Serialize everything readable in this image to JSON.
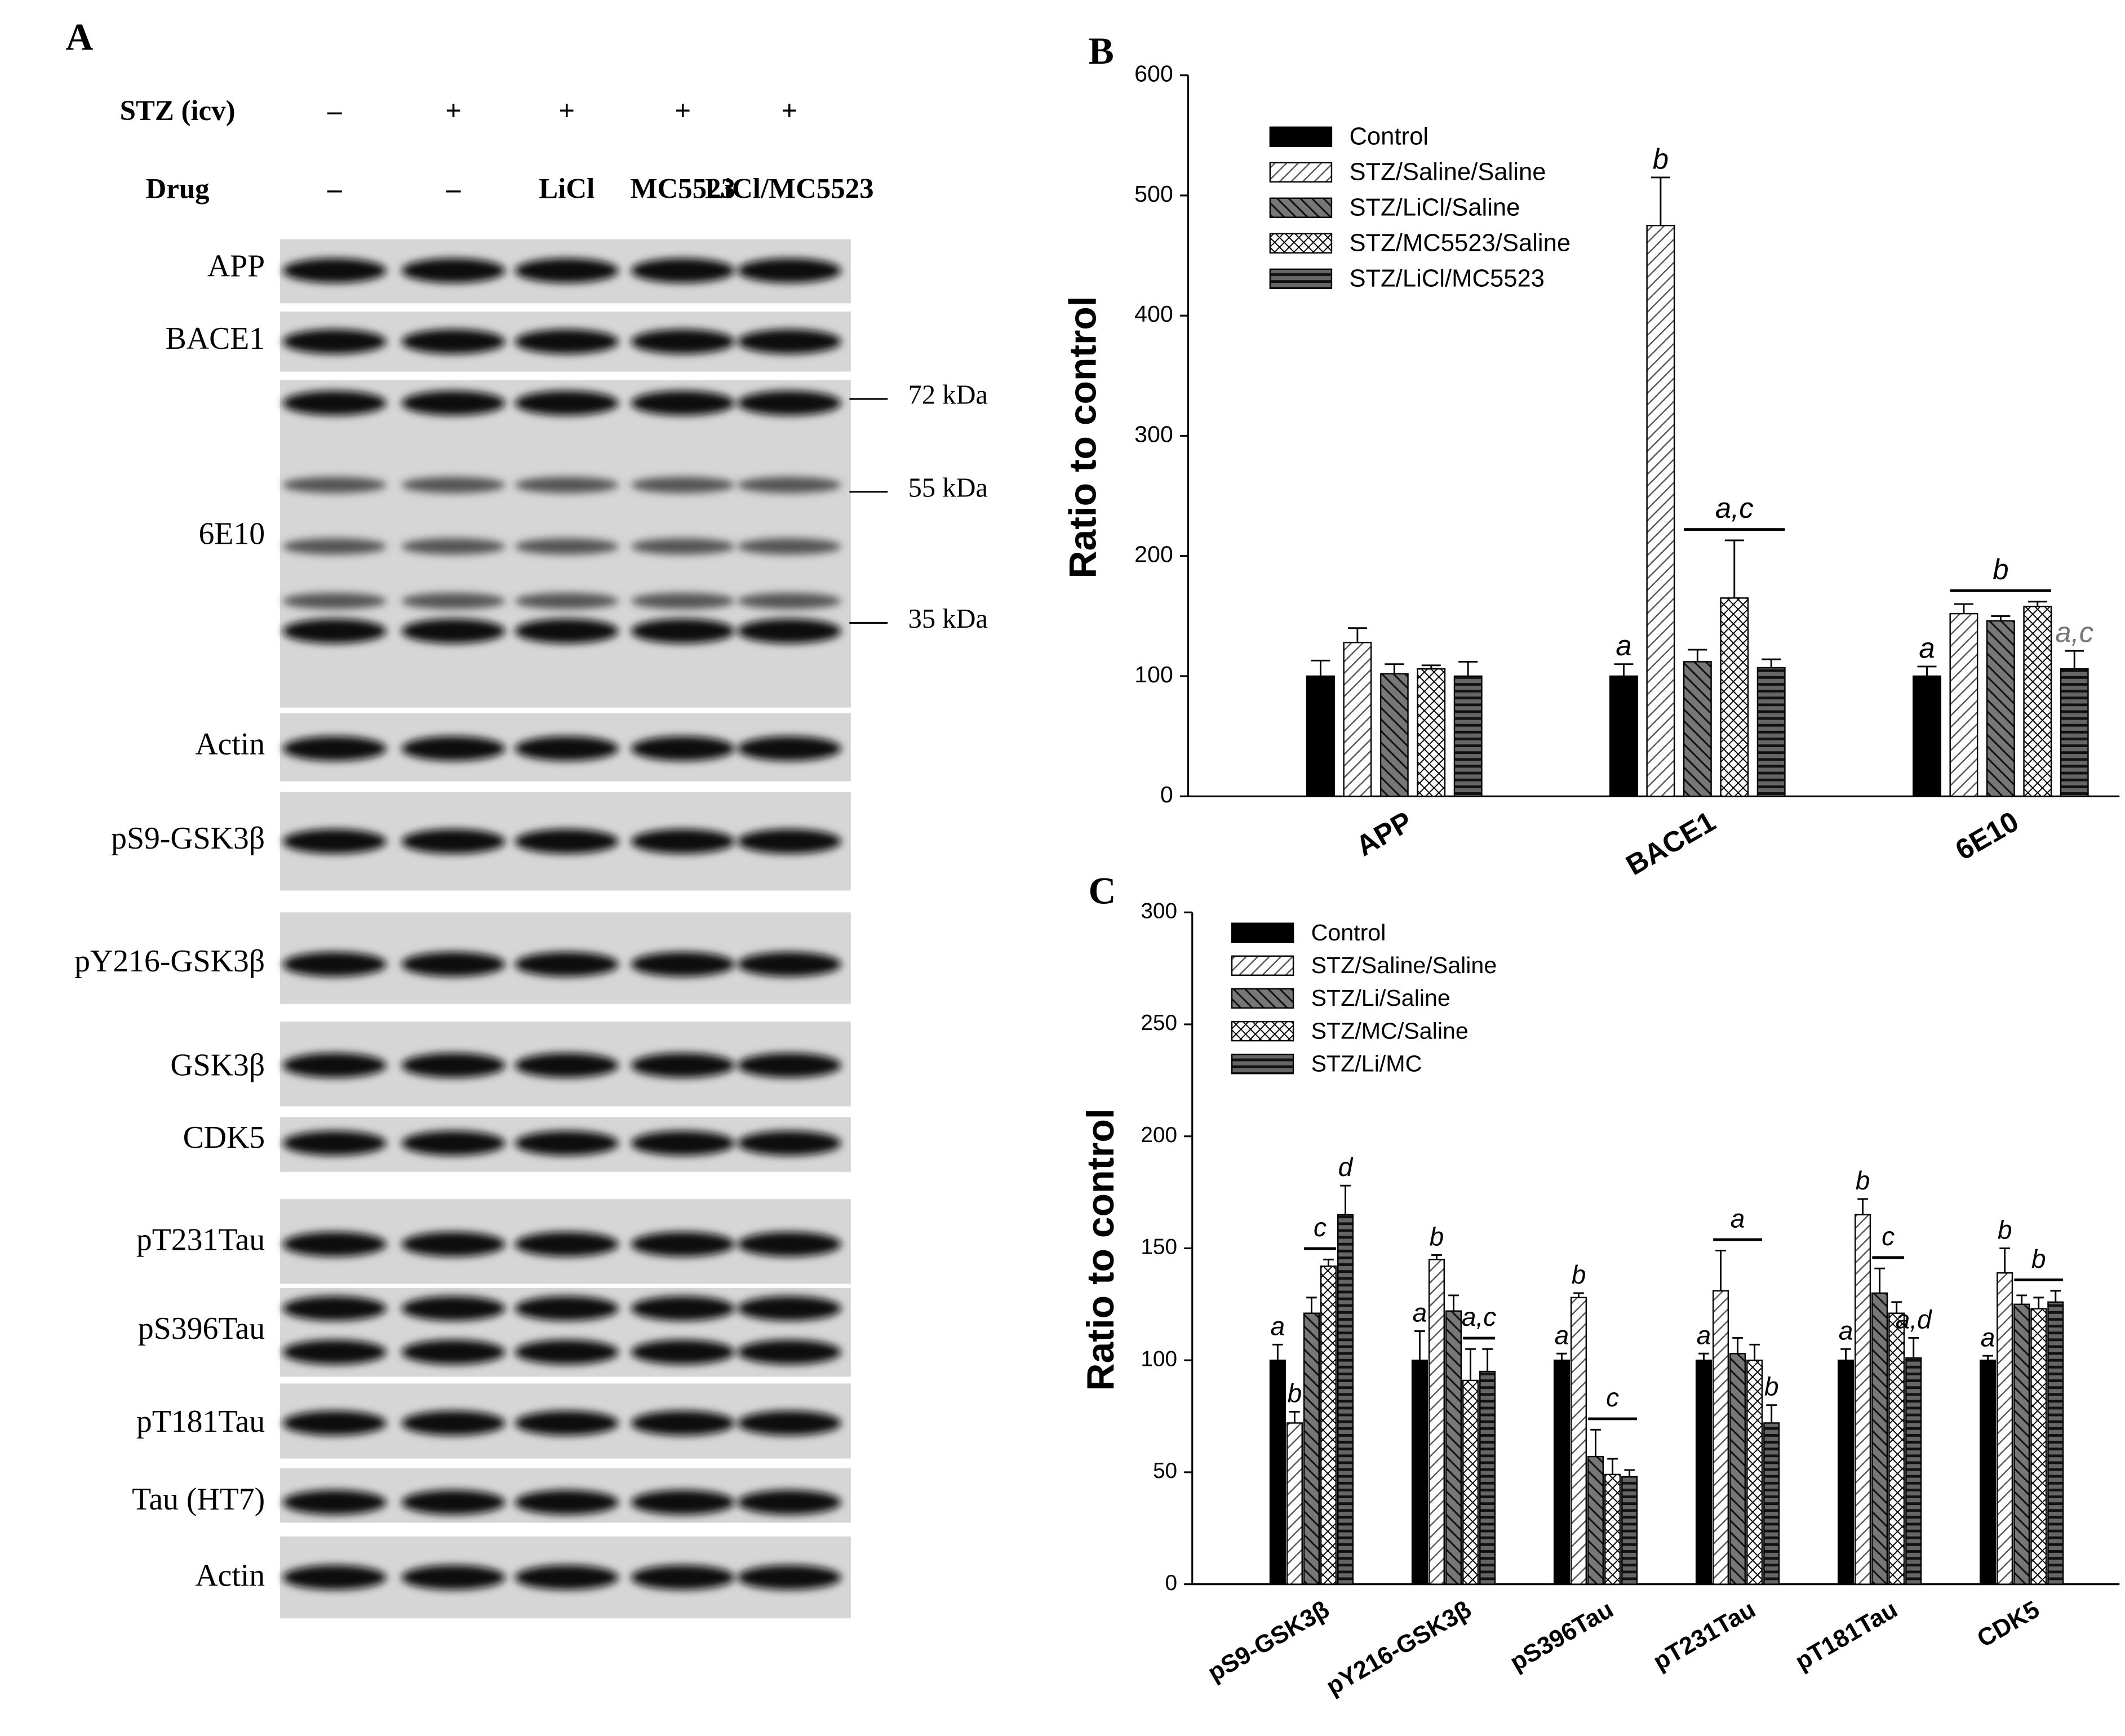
{
  "panel_a": {
    "label": "A",
    "rows": [
      {
        "label": "STZ (icv)",
        "lanes": [
          "–",
          "+",
          "+",
          "+",
          "+"
        ]
      },
      {
        "label": "Drug",
        "lanes": [
          "–",
          "–",
          "LiCl",
          "MC5523",
          "LiCl/MC5523"
        ]
      }
    ],
    "blots": [
      "APP",
      "BACE1",
      "6E10",
      "Actin",
      "pS9-GSK3β",
      "pY216-GSK3β",
      "GSK3β",
      "CDK5",
      "pT231Tau",
      "pS396Tau",
      "pT181Tau",
      "Tau (HT7)",
      "Actin"
    ],
    "markers": [
      "72 kDa",
      "55 kDa",
      "35 kDa"
    ]
  },
  "chart_data": [
    {
      "type": "bar",
      "panel_label": "B",
      "y_label": "Ratio to control",
      "categories": [
        "APP",
        "BACE1",
        "6E10"
      ],
      "series": [
        {
          "name": "Control",
          "pattern": "solid",
          "values": [
            100,
            100,
            100
          ],
          "errors": [
            13,
            10,
            8
          ]
        },
        {
          "name": "STZ/Saline/Saline",
          "pattern": "forward-hatch",
          "values": [
            128,
            475,
            152
          ],
          "errors": [
            12,
            40,
            8
          ]
        },
        {
          "name": "STZ/LiCl/Saline",
          "pattern": "back-hatch",
          "values": [
            102,
            112,
            146
          ],
          "errors": [
            8,
            10,
            4
          ]
        },
        {
          "name": "STZ/MC5523/Saline",
          "pattern": "cross-hatch",
          "values": [
            106,
            165,
            158
          ],
          "errors": [
            3,
            48,
            4
          ]
        },
        {
          "name": "STZ/LiCl/MC5523",
          "pattern": "horizontal",
          "values": [
            100,
            107,
            106
          ],
          "errors": [
            12,
            7,
            15
          ]
        }
      ],
      "ylim": [
        0,
        600
      ],
      "yticks": [
        0,
        100,
        200,
        300,
        400,
        500,
        600
      ],
      "legend": "upper left",
      "annotations": [
        {
          "text": "a",
          "category": "BACE1",
          "from": "Control"
        },
        {
          "text": "b",
          "category": "BACE1",
          "from": "STZ/Saline/Saline"
        },
        {
          "text": "a,c",
          "category": "BACE1",
          "from": "STZ/LiCl/Saline",
          "to": "STZ/LiCl/MC5523"
        },
        {
          "text": "a",
          "category": "6E10",
          "from": "Control"
        },
        {
          "text": "b",
          "category": "6E10",
          "from": "STZ/Saline/Saline",
          "to": "STZ/MC5523/Saline"
        },
        {
          "text": "a,c",
          "category": "6E10",
          "from": "STZ/LiCl/MC5523",
          "color": "#777777"
        }
      ]
    },
    {
      "type": "bar",
      "panel_label": "C",
      "y_label": "Ratio to control",
      "categories": [
        "pS9-GSK3β",
        "pY216-GSK3β",
        "pS396Tau",
        "pT231Tau",
        "pT181Tau",
        "CDK5"
      ],
      "series": [
        {
          "name": "Control",
          "pattern": "solid",
          "values": [
            100,
            100,
            100,
            100,
            100,
            100
          ],
          "errors": [
            7,
            13,
            3,
            3,
            5,
            2
          ]
        },
        {
          "name": "STZ/Saline/Saline",
          "pattern": "forward-hatch",
          "values": [
            72,
            145,
            128,
            131,
            165,
            139
          ],
          "errors": [
            5,
            2,
            2,
            18,
            7,
            11
          ]
        },
        {
          "name": "STZ/Li/Saline",
          "pattern": "back-hatch",
          "values": [
            121,
            122,
            57,
            103,
            130,
            125
          ],
          "errors": [
            7,
            7,
            12,
            7,
            11,
            4
          ]
        },
        {
          "name": "STZ/MC/Saline",
          "pattern": "cross-hatch",
          "values": [
            142,
            91,
            49,
            100,
            121,
            123
          ],
          "errors": [
            3,
            14,
            7,
            7,
            5,
            5
          ]
        },
        {
          "name": "STZ/Li/MC",
          "pattern": "horizontal",
          "values": [
            165,
            95,
            48,
            72,
            101,
            126
          ],
          "errors": [
            13,
            10,
            3,
            8,
            9,
            5
          ]
        }
      ],
      "ylim": [
        0,
        300
      ],
      "yticks": [
        0,
        50,
        100,
        150,
        200,
        250,
        300
      ],
      "legend": "upper left",
      "annotations": [
        {
          "text": "a",
          "category": "pS9-GSK3β",
          "from": "Control"
        },
        {
          "text": "b",
          "category": "pS9-GSK3β",
          "from": "STZ/Saline/Saline"
        },
        {
          "text": "c",
          "category": "pS9-GSK3β",
          "from": "STZ/Li/Saline",
          "to": "STZ/MC/Saline"
        },
        {
          "text": "d",
          "category": "pS9-GSK3β",
          "from": "STZ/Li/MC"
        },
        {
          "text": "a",
          "category": "pY216-GSK3β",
          "from": "Control"
        },
        {
          "text": "b",
          "category": "pY216-GSK3β",
          "from": "STZ/Saline/Saline"
        },
        {
          "text": "a,c",
          "category": "pY216-GSK3β",
          "from": "STZ/MC/Saline",
          "to": "STZ/Li/MC"
        },
        {
          "text": "a",
          "category": "pS396Tau",
          "from": "Control"
        },
        {
          "text": "b",
          "category": "pS396Tau",
          "from": "STZ/Saline/Saline"
        },
        {
          "text": "c",
          "category": "pS396Tau",
          "from": "STZ/Li/Saline",
          "to": "STZ/Li/MC"
        },
        {
          "text": "a",
          "category": "pT231Tau",
          "from": "Control"
        },
        {
          "text": "a",
          "category": "pT231Tau",
          "from": "STZ/Saline/Saline",
          "to": "STZ/MC/Saline"
        },
        {
          "text": "b",
          "category": "pT231Tau",
          "from": "STZ/Li/MC"
        },
        {
          "text": "a",
          "category": "pT181Tau",
          "from": "Control"
        },
        {
          "text": "b",
          "category": "pT181Tau",
          "from": "STZ/Saline/Saline"
        },
        {
          "text": "c",
          "category": "pT181Tau",
          "from": "STZ/Li/Saline",
          "to": "STZ/MC/Saline"
        },
        {
          "text": "a,d",
          "category": "pT181Tau",
          "from": "STZ/Li/MC"
        },
        {
          "text": "a",
          "category": "CDK5",
          "from": "Control"
        },
        {
          "text": "b",
          "category": "CDK5",
          "from": "STZ/Saline/Saline"
        },
        {
          "text": "b",
          "category": "CDK5",
          "from": "STZ/Li/Saline",
          "to": "STZ/Li/MC"
        }
      ]
    }
  ]
}
